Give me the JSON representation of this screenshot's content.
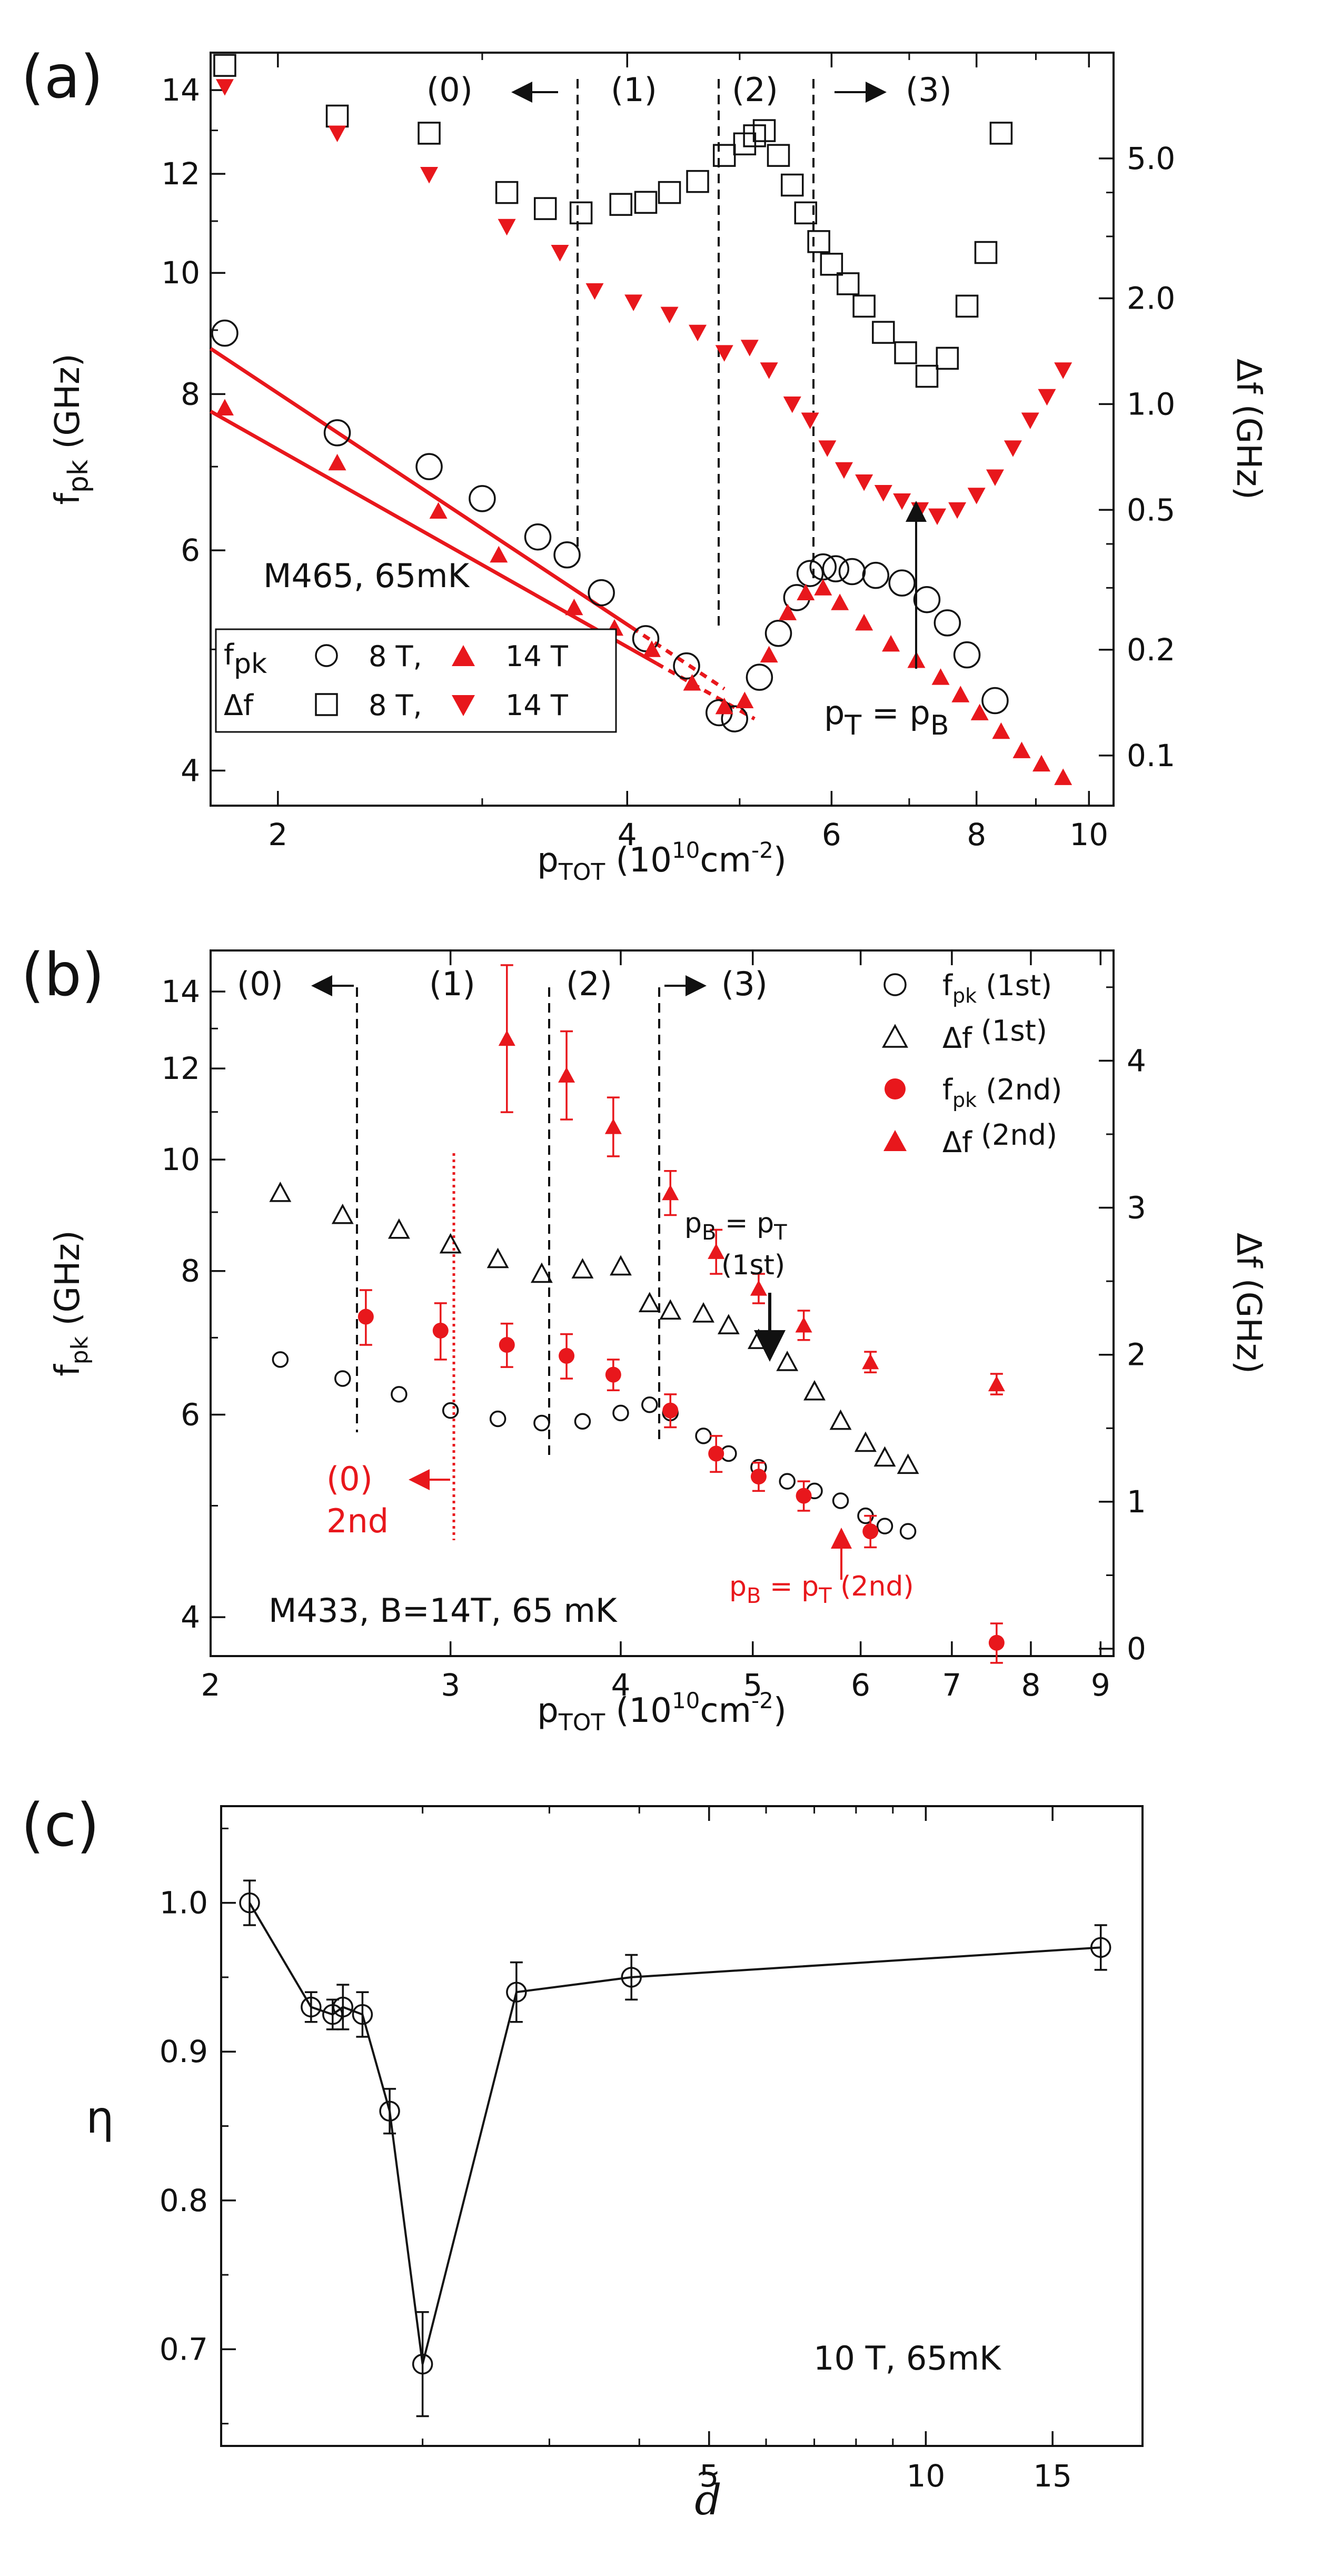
{
  "colors": {
    "red": "#e8171c",
    "black": "#111111"
  },
  "panels": [
    {
      "letter": "(a)",
      "xlabel": {
        "main": "p",
        "sub": "TOT",
        "unit_open": " (10",
        "sup": "10",
        "unit_tail": "cm",
        "sup2": "-2",
        "close": ")"
      },
      "ylabel_left": {
        "main": "f",
        "sub": "pk",
        "unit": " (GHz)"
      },
      "ylabel_right": "Δf  (GHz)",
      "xticks": [
        "2",
        "4",
        "6",
        "8",
        "10"
      ],
      "yticks_left": [
        "4",
        "6",
        "8",
        "10",
        "12",
        "14"
      ],
      "yticks_right": [
        "0.1",
        "0.2",
        "0.5",
        "1.0",
        "2.0",
        "5.0"
      ],
      "regions": [
        "(0)",
        "(1)",
        "(2)",
        "(3)"
      ],
      "sample": "M465, 65mK",
      "arrow_label": {
        "main": "p",
        "sub1": "T",
        "mid": " = p",
        "sub2": "B"
      },
      "legend": {
        "row1_label": "f",
        "row1_sub": "pk",
        "row2_label": "Δf",
        "open_label": "8 T,",
        "filled_label": "14 T"
      }
    },
    {
      "letter": "(b)",
      "xlabel": {
        "main": "p",
        "sub": "TOT",
        "unit_open": " (10",
        "sup": "10",
        "unit_tail": "cm",
        "sup2": "-2",
        "close": ")"
      },
      "ylabel_left": {
        "main": "f",
        "sub": "pk",
        "unit": " (GHz)"
      },
      "ylabel_right": "Δf  (GHz)",
      "xticks": [
        "2",
        "3",
        "4",
        "5",
        "6",
        "7",
        "8",
        "9"
      ],
      "yticks_left": [
        "4",
        "6",
        "8",
        "10",
        "12",
        "14"
      ],
      "yticks_right": [
        "0",
        "1",
        "2",
        "3",
        "4"
      ],
      "regions": [
        "(0)",
        "(1)",
        "(2)",
        "(3)"
      ],
      "red_region": [
        "(0)",
        "2nd"
      ],
      "sample": "M433, B=14T, 65 mK",
      "marker_first": {
        "l1_main": "p",
        "l1_sub1": "B",
        "l1_mid": " = p",
        "l1_sub2": "T",
        "l2": "(1st)"
      },
      "marker_second": {
        "main": "p",
        "sub1": "B",
        "mid": " = p",
        "sub2": "T",
        "tail": " (2nd)"
      },
      "legend": [
        {
          "main": "f",
          "sub": "pk",
          "tail": " (1st)"
        },
        {
          "main": "Δf",
          "sub": "",
          "tail": " (1st)"
        },
        {
          "main": "f",
          "sub": "pk",
          "tail": " (2nd)"
        },
        {
          "main": "Δf",
          "sub": "",
          "tail": " (2nd)"
        }
      ]
    },
    {
      "letter": "(c)",
      "ylabel": "η",
      "xlabel": "d",
      "xlabel_accent": "~",
      "xticks": [
        "5",
        "10",
        "15"
      ],
      "yticks": [
        "0.7",
        "0.8",
        "0.9",
        "1.0"
      ],
      "condition": "10 T,  65mK"
    }
  ],
  "chart_data": [
    {
      "panel": "(a)",
      "type": "scatter",
      "xscale": "log",
      "xlim": [
        1.75,
        10.5
      ],
      "yscale_left": "log",
      "ylim_left": [
        3.75,
        15.0
      ],
      "yscale_right": "log",
      "ylim_right": [
        0.072,
        10.0
      ],
      "region_boundaries": [
        3.75,
        4.95,
        5.95
      ],
      "series": [
        {
          "name": "f_pk 8 T",
          "axis": "left",
          "marker": "open-circle",
          "x": [
            1.8,
            2.25,
            2.7,
            3.0,
            3.35,
            3.55,
            3.8,
            4.15,
            4.5,
            4.8,
            4.95,
            5.2,
            5.4,
            5.6,
            5.75,
            5.9,
            6.05,
            6.25,
            6.55,
            6.9,
            7.25,
            7.55,
            7.85,
            8.3
          ],
          "y": [
            8.95,
            7.45,
            7.0,
            6.6,
            6.15,
            5.95,
            5.55,
            5.1,
            4.85,
            4.45,
            4.4,
            4.75,
            5.15,
            5.5,
            5.75,
            5.82,
            5.8,
            5.77,
            5.73,
            5.65,
            5.48,
            5.25,
            4.95,
            4.55
          ]
        },
        {
          "name": "f_pk 14 T",
          "axis": "left",
          "marker": "filled-triangle-up",
          "x": [
            1.8,
            2.25,
            2.75,
            3.1,
            3.6,
            3.9,
            4.2,
            4.55,
            4.85,
            5.05,
            5.3,
            5.5,
            5.7,
            5.9,
            6.1,
            6.4,
            6.75,
            7.1,
            7.45,
            7.75,
            8.05,
            8.4,
            8.75,
            9.1,
            9.5
          ],
          "y": [
            7.8,
            7.05,
            6.45,
            5.95,
            5.4,
            5.2,
            5.0,
            4.7,
            4.5,
            4.55,
            4.95,
            5.35,
            5.55,
            5.6,
            5.45,
            5.25,
            5.05,
            4.9,
            4.75,
            4.6,
            4.45,
            4.3,
            4.15,
            4.05,
            3.95
          ]
        },
        {
          "name": "Δf 8 T",
          "axis": "right",
          "marker": "open-square",
          "x": [
            1.8,
            2.25,
            2.7,
            3.15,
            3.4,
            3.65,
            3.95,
            4.15,
            4.35,
            4.6,
            4.85,
            5.05,
            5.15,
            5.25,
            5.4,
            5.55,
            5.7,
            5.85,
            6.0,
            6.2,
            6.4,
            6.65,
            6.95,
            7.25,
            7.55,
            7.85,
            8.15,
            8.4
          ],
          "y": [
            9.2,
            6.6,
            5.9,
            4.0,
            3.6,
            3.5,
            3.7,
            3.75,
            4.0,
            4.3,
            5.1,
            5.5,
            5.8,
            6.0,
            5.1,
            4.2,
            3.5,
            2.9,
            2.5,
            2.2,
            1.9,
            1.6,
            1.4,
            1.2,
            1.35,
            1.9,
            2.7,
            5.9
          ]
        },
        {
          "name": "Δf 14 T",
          "axis": "right",
          "marker": "filled-triangle-down",
          "x": [
            1.8,
            2.25,
            2.7,
            3.15,
            3.5,
            3.75,
            4.05,
            4.35,
            4.6,
            4.85,
            5.1,
            5.3,
            5.55,
            5.75,
            5.95,
            6.15,
            6.4,
            6.65,
            6.9,
            7.15,
            7.4,
            7.7,
            8.0,
            8.3,
            8.6,
            8.9,
            9.2,
            9.5
          ],
          "y": [
            8.0,
            5.9,
            4.5,
            3.2,
            2.7,
            2.1,
            1.95,
            1.8,
            1.6,
            1.4,
            1.45,
            1.25,
            1.0,
            0.9,
            0.75,
            0.65,
            0.6,
            0.56,
            0.53,
            0.5,
            0.48,
            0.5,
            0.55,
            0.62,
            0.75,
            0.9,
            1.05,
            1.25
          ]
        }
      ],
      "fit_lines": [
        {
          "name": "fit 8 T",
          "x": [
            1.75,
            4.85
          ],
          "y": [
            8.7,
            4.65
          ]
        },
        {
          "name": "fit 14 T",
          "x": [
            1.75,
            5.15
          ],
          "y": [
            7.75,
            4.4
          ]
        }
      ]
    },
    {
      "panel": "(b)",
      "type": "scatter",
      "xscale": "log",
      "xlim": [
        2.0,
        9.2
      ],
      "yscale_left": "log",
      "ylim_left": [
        3.7,
        15.2
      ],
      "yscale_right": "linear",
      "ylim_right": [
        -0.05,
        4.75
      ],
      "region_boundaries": [
        2.5,
        3.5,
        4.2
      ],
      "red_region_boundary": 2.95,
      "series": [
        {
          "name": "f_pk (1st)",
          "axis": "left",
          "marker": "open-circle",
          "x": [
            2.25,
            2.5,
            2.75,
            3.0,
            3.25,
            3.5,
            3.75,
            4.0,
            4.2,
            4.35,
            4.6,
            4.8,
            5.05,
            5.3,
            5.55,
            5.8,
            6.05,
            6.25,
            6.5
          ],
          "y": [
            6.7,
            6.45,
            6.25,
            6.05,
            5.95,
            5.9,
            5.92,
            6.02,
            6.12,
            6.02,
            5.75,
            5.55,
            5.4,
            5.25,
            5.15,
            5.05,
            4.9,
            4.8,
            4.75
          ]
        },
        {
          "name": "Δf (1st)",
          "axis": "right",
          "marker": "open-triangle-up",
          "x": [
            2.25,
            2.5,
            2.75,
            3.0,
            3.25,
            3.5,
            3.75,
            4.0,
            4.2,
            4.35,
            4.6,
            4.8,
            5.05,
            5.3,
            5.55,
            5.8,
            6.05,
            6.25,
            6.5
          ],
          "y": [
            3.1,
            2.95,
            2.85,
            2.75,
            2.65,
            2.55,
            2.58,
            2.6,
            2.35,
            2.3,
            2.28,
            2.2,
            2.1,
            1.95,
            1.75,
            1.55,
            1.4,
            1.3,
            1.25
          ]
        },
        {
          "name": "f_pk (2nd)",
          "axis": "left",
          "marker": "filled-circle",
          "x": [
            2.6,
            2.95,
            3.3,
            3.65,
            3.95,
            4.35,
            4.7,
            5.05,
            5.45,
            6.1,
            7.55
          ],
          "y": [
            7.3,
            7.1,
            6.9,
            6.75,
            6.5,
            6.05,
            5.55,
            5.3,
            5.1,
            4.75,
            3.8
          ],
          "err": [
            0.4,
            0.4,
            0.3,
            0.3,
            0.2,
            0.2,
            0.2,
            0.15,
            0.15,
            0.15,
            0.15
          ]
        },
        {
          "name": "Δf (2nd)",
          "axis": "right",
          "marker": "filled-triangle-up",
          "x": [
            3.3,
            3.65,
            3.95,
            4.35,
            4.7,
            5.05,
            5.45,
            6.1,
            7.55
          ],
          "y": [
            4.15,
            3.9,
            3.55,
            3.1,
            2.7,
            2.45,
            2.2,
            1.95,
            1.8
          ],
          "err": [
            0.5,
            0.3,
            0.2,
            0.15,
            0.15,
            0.1,
            0.1,
            0.07,
            0.07
          ]
        }
      ]
    },
    {
      "panel": "(c)",
      "type": "line",
      "xscale": "log",
      "xlim": [
        1.05,
        20.0
      ],
      "yscale": "linear",
      "ylim": [
        0.635,
        1.065
      ],
      "x": [
        1.15,
        1.4,
        1.5,
        1.55,
        1.65,
        1.8,
        2.0,
        2.7,
        3.9,
        17.5
      ],
      "y": [
        1.0,
        0.93,
        0.925,
        0.93,
        0.925,
        0.86,
        0.69,
        0.94,
        0.95,
        0.97
      ],
      "err": [
        0.015,
        0.01,
        0.01,
        0.015,
        0.015,
        0.015,
        0.035,
        0.02,
        0.015,
        0.015
      ]
    }
  ]
}
